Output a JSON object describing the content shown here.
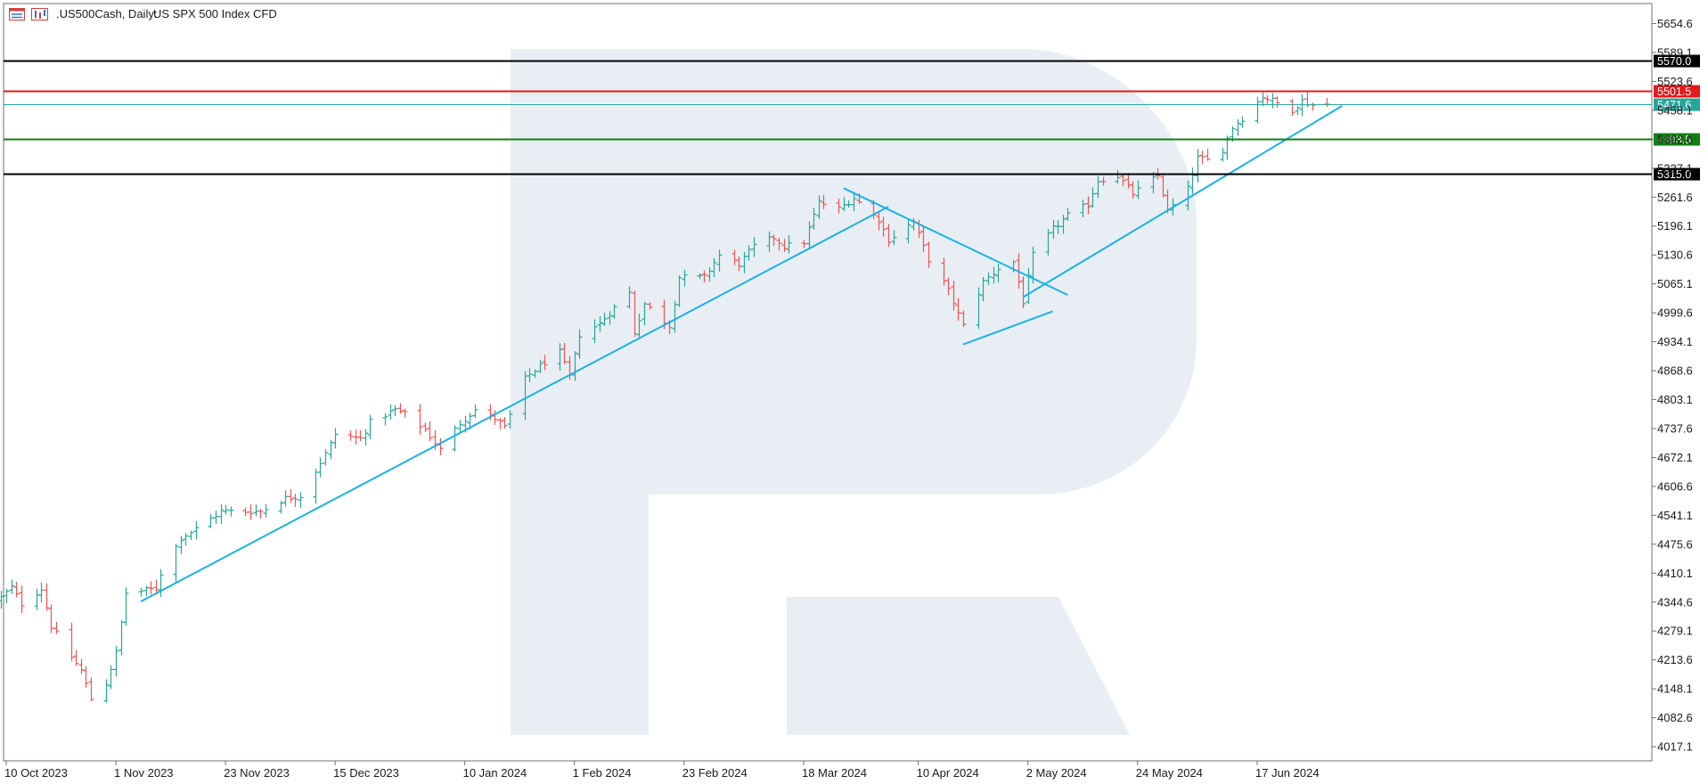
{
  "header": {
    "symbol": ".US500Cash, Daily:",
    "description": "US SPX 500 Index CFD",
    "icons": [
      "chart-window-icon",
      "chart-bars-icon"
    ]
  },
  "colors": {
    "bull": "#26a69a",
    "bear": "#ef5350",
    "trendline": "#19b2ea",
    "frame": "#707070",
    "watermark": "#e9eef5"
  },
  "chart_data": {
    "type": "ohlc",
    "symbol": ".US500Cash",
    "timeframe": "Daily",
    "ylim": [
      3985,
      5700
    ],
    "y_ticks": [
      "5654.6",
      "5589.1",
      "5523.6",
      "5458.1",
      "5392.6",
      "5327.1",
      "5261.6",
      "5196.1",
      "5130.6",
      "5065.1",
      "4999.6",
      "4934.1",
      "4868.6",
      "4803.1",
      "4737.6",
      "4672.1",
      "4606.6",
      "4541.1",
      "4475.6",
      "4410.1",
      "4344.6",
      "4279.1",
      "4213.6",
      "4148.1",
      "4082.6",
      "4017.1"
    ],
    "x_ticks": [
      {
        "label": "10 Oct 2023",
        "date": "2023-10-10"
      },
      {
        "label": "1 Nov 2023",
        "date": "2023-11-01"
      },
      {
        "label": "23 Nov 2023",
        "date": "2023-11-23"
      },
      {
        "label": "15 Dec 2023",
        "date": "2023-12-15"
      },
      {
        "label": "10 Jan 2024",
        "date": "2024-01-10"
      },
      {
        "label": "1 Feb 2024",
        "date": "2024-02-01"
      },
      {
        "label": "23 Feb 2024",
        "date": "2024-02-23"
      },
      {
        "label": "18 Mar 2024",
        "date": "2024-03-18"
      },
      {
        "label": "10 Apr 2024",
        "date": "2024-04-10"
      },
      {
        "label": "2 May 2024",
        "date": "2024-05-02"
      },
      {
        "label": "24 May 2024",
        "date": "2024-05-24"
      },
      {
        "label": "17 Jun 2024",
        "date": "2024-06-17"
      }
    ],
    "horizontal_levels": [
      {
        "value": 5570.0,
        "label": "5570.0",
        "color": "#000000"
      },
      {
        "value": 5501.5,
        "label": "5501.5",
        "color": "#e61919"
      },
      {
        "value": 5471.6,
        "label": "5471.6",
        "color": "#26a69a"
      },
      {
        "value": 5393.5,
        "label": "5393.5",
        "color": "#108010"
      },
      {
        "value": 5315.0,
        "label": "5315.0",
        "color": "#000000"
      }
    ],
    "trendlines": [
      {
        "from": {
          "date": "2023-11-06",
          "value": 4346
        },
        "to": {
          "date": "2024-04-04",
          "value": 5240
        }
      },
      {
        "from": {
          "date": "2024-03-26",
          "value": 5282
        },
        "to": {
          "date": "2024-05-10",
          "value": 5040
        }
      },
      {
        "from": {
          "date": "2024-04-19",
          "value": 4928
        },
        "to": {
          "date": "2024-05-07",
          "value": 5003
        }
      },
      {
        "from": {
          "date": "2024-05-01",
          "value": 5035
        },
        "to": {
          "date": "2024-07-04",
          "value": 5468
        }
      }
    ],
    "close_anchors": [
      [
        "2023-10-09",
        4355
      ],
      [
        "2023-10-11",
        4378
      ],
      [
        "2023-10-13",
        4340
      ],
      [
        "2023-10-17",
        4375
      ],
      [
        "2023-10-19",
        4290
      ],
      [
        "2023-10-23",
        4220
      ],
      [
        "2023-10-25",
        4190
      ],
      [
        "2023-10-27",
        4125
      ],
      [
        "2023-10-30",
        4160
      ],
      [
        "2023-11-01",
        4230
      ],
      [
        "2023-11-03",
        4365
      ],
      [
        "2023-11-06",
        4370
      ],
      [
        "2023-11-09",
        4375
      ],
      [
        "2023-11-10",
        4410
      ],
      [
        "2023-11-14",
        4490
      ],
      [
        "2023-11-17",
        4510
      ],
      [
        "2023-11-22",
        4550
      ],
      [
        "2023-11-30",
        4550
      ],
      [
        "2023-12-05",
        4580
      ],
      [
        "2023-12-08",
        4585
      ],
      [
        "2023-12-13",
        4680
      ],
      [
        "2023-12-15",
        4725
      ],
      [
        "2023-12-20",
        4715
      ],
      [
        "2023-12-22",
        4752
      ],
      [
        "2023-12-27",
        4780
      ],
      [
        "2023-12-29",
        4770
      ],
      [
        "2024-01-02",
        4735
      ],
      [
        "2024-01-05",
        4690
      ],
      [
        "2024-01-09",
        4750
      ],
      [
        "2024-01-12",
        4780
      ],
      [
        "2024-01-16",
        4760
      ],
      [
        "2024-01-18",
        4740
      ],
      [
        "2024-01-22",
        4850
      ],
      [
        "2024-01-25",
        4880
      ],
      [
        "2024-01-29",
        4910
      ],
      [
        "2024-01-31",
        4855
      ],
      [
        "2024-02-02",
        4950
      ],
      [
        "2024-02-06",
        4975
      ],
      [
        "2024-02-08",
        5000
      ],
      [
        "2024-02-12",
        5045
      ],
      [
        "2024-02-13",
        4955
      ],
      [
        "2024-02-15",
        5020
      ],
      [
        "2024-02-20",
        4970
      ],
      [
        "2024-02-22",
        5080
      ],
      [
        "2024-02-27",
        5080
      ],
      [
        "2024-03-01",
        5130
      ],
      [
        "2024-03-05",
        5110
      ],
      [
        "2024-03-08",
        5150
      ],
      [
        "2024-03-12",
        5170
      ],
      [
        "2024-03-14",
        5150
      ],
      [
        "2024-03-18",
        5160
      ],
      [
        "2024-03-21",
        5250
      ],
      [
        "2024-03-25",
        5235
      ],
      [
        "2024-03-28",
        5260
      ],
      [
        "2024-04-02",
        5210
      ],
      [
        "2024-04-04",
        5165
      ],
      [
        "2024-04-09",
        5205
      ],
      [
        "2024-04-12",
        5120
      ],
      [
        "2024-04-16",
        5050
      ],
      [
        "2024-04-19",
        4970
      ],
      [
        "2024-04-23",
        5070
      ],
      [
        "2024-04-26",
        5100
      ],
      [
        "2024-04-29",
        5115
      ],
      [
        "2024-05-01",
        5025
      ],
      [
        "2024-05-03",
        5130
      ],
      [
        "2024-05-07",
        5190
      ],
      [
        "2024-05-10",
        5220
      ],
      [
        "2024-05-14",
        5245
      ],
      [
        "2024-05-16",
        5300
      ],
      [
        "2024-05-20",
        5310
      ],
      [
        "2024-05-23",
        5270
      ],
      [
        "2024-05-28",
        5310
      ],
      [
        "2024-05-30",
        5230
      ],
      [
        "2024-06-03",
        5280
      ],
      [
        "2024-06-05",
        5350
      ],
      [
        "2024-06-07",
        5345
      ],
      [
        "2024-06-10",
        5370
      ],
      [
        "2024-06-12",
        5420
      ],
      [
        "2024-06-14",
        5440
      ],
      [
        "2024-06-18",
        5490
      ],
      [
        "2024-06-20",
        5480
      ],
      [
        "2024-06-24",
        5460
      ],
      [
        "2024-06-26",
        5480
      ],
      [
        "2024-06-28",
        5470
      ],
      [
        "2024-07-01",
        5472
      ]
    ]
  }
}
